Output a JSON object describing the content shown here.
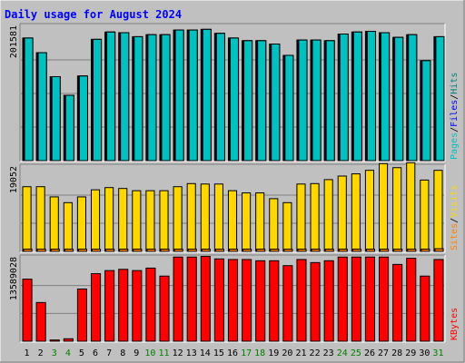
{
  "title": "Daily usage for August 2024",
  "colors": {
    "background": "#c0c0c0",
    "title": "#0000ff",
    "hits": "#008080",
    "files": "#0000ff",
    "pages": "#00c0c0",
    "visits": "#ffd700",
    "sites": "#ff8000",
    "kbytes": "#ff0000",
    "weekend_day_label": "#008000",
    "weekday_day_label": "#000000"
  },
  "chart_data": [
    {
      "type": "bar",
      "panel": "top",
      "ytick_label": "201581",
      "ylim": [
        0,
        201581
      ],
      "legend": [
        {
          "name": "Hits",
          "color": "#008080"
        },
        {
          "name": "/",
          "color": "#000000"
        },
        {
          "name": "Files",
          "color": "#0000ff"
        },
        {
          "name": "/",
          "color": "#000000"
        },
        {
          "name": "Pages",
          "color": "#00c0c0"
        }
      ],
      "categories": [
        "1",
        "2",
        "3",
        "4",
        "5",
        "6",
        "7",
        "8",
        "9",
        "10",
        "11",
        "12",
        "13",
        "14",
        "15",
        "16",
        "17",
        "18",
        "19",
        "20",
        "21",
        "22",
        "23",
        "24",
        "25",
        "26",
        "27",
        "28",
        "29",
        "30",
        "31"
      ],
      "weekend_days": [
        "3",
        "4",
        "10",
        "11",
        "17",
        "18",
        "24",
        "25",
        "31"
      ],
      "series": [
        {
          "name": "Hits",
          "values": [
            184000,
            162000,
            126000,
            98000,
            127000,
            182000,
            193000,
            192000,
            186000,
            189000,
            189000,
            196000,
            196000,
            197000,
            191000,
            184000,
            180000,
            180000,
            175000,
            158000,
            181000,
            181000,
            180000,
            190000,
            193000,
            194000,
            192000,
            185000,
            189000,
            150000,
            186000
          ]
        },
        {
          "name": "Files",
          "values": [
            184000,
            162000,
            126000,
            98000,
            127000,
            182000,
            193000,
            192000,
            186000,
            189000,
            189000,
            196000,
            196000,
            197000,
            191000,
            184000,
            180000,
            180000,
            175000,
            158000,
            181000,
            181000,
            180000,
            190000,
            193000,
            194000,
            192000,
            185000,
            189000,
            150000,
            186000
          ]
        },
        {
          "name": "Pages",
          "values": [
            184000,
            162000,
            126000,
            98000,
            127000,
            182000,
            193000,
            192000,
            186000,
            189000,
            189000,
            196000,
            196000,
            197000,
            191000,
            184000,
            180000,
            180000,
            175000,
            158000,
            181000,
            181000,
            180000,
            190000,
            193000,
            194000,
            192000,
            185000,
            189000,
            150000,
            186000
          ]
        }
      ]
    },
    {
      "type": "bar",
      "panel": "middle",
      "ytick_label": "19052",
      "ylim": [
        0,
        19052
      ],
      "legend": [
        {
          "name": "Visits",
          "color": "#ffd700"
        },
        {
          "name": "/",
          "color": "#000000"
        },
        {
          "name": "Sites",
          "color": "#ff8000"
        }
      ],
      "categories": [
        "1",
        "2",
        "3",
        "4",
        "5",
        "6",
        "7",
        "8",
        "9",
        "10",
        "11",
        "12",
        "13",
        "14",
        "15",
        "16",
        "17",
        "18",
        "19",
        "20",
        "21",
        "22",
        "23",
        "24",
        "25",
        "26",
        "27",
        "28",
        "29",
        "30",
        "31"
      ],
      "series": [
        {
          "name": "Visits",
          "values": [
            14600,
            14600,
            12300,
            11000,
            12300,
            13900,
            14400,
            14200,
            13700,
            13700,
            13700,
            14600,
            15300,
            15200,
            15200,
            13700,
            13200,
            13200,
            11900,
            11000,
            15200,
            15300,
            16200,
            17000,
            17500,
            18300,
            19800,
            18900,
            20000,
            16100,
            18300
          ]
        },
        {
          "name": "Sites",
          "values": [
            500,
            500,
            500,
            500,
            500,
            500,
            500,
            500,
            500,
            500,
            500,
            500,
            500,
            500,
            500,
            500,
            500,
            500,
            500,
            500,
            500,
            500,
            500,
            500,
            500,
            500,
            500,
            500,
            500,
            500,
            600
          ]
        }
      ]
    },
    {
      "type": "bar",
      "panel": "bottom",
      "ytick_label": "13589028",
      "ylim": [
        0,
        13589028
      ],
      "legend": [
        {
          "name": "KBytes",
          "color": "#ff0000"
        }
      ],
      "categories": [
        "1",
        "2",
        "3",
        "4",
        "5",
        "6",
        "7",
        "8",
        "9",
        "10",
        "11",
        "12",
        "13",
        "14",
        "15",
        "16",
        "17",
        "18",
        "19",
        "20",
        "21",
        "22",
        "23",
        "24",
        "25",
        "26",
        "27",
        "28",
        "29",
        "30",
        "31"
      ],
      "series": [
        {
          "name": "KBytes",
          "values": [
            10100000,
            6300000,
            200000,
            400000,
            8500000,
            11000000,
            11500000,
            11700000,
            11500000,
            11900000,
            10600000,
            13700000,
            13700000,
            13800000,
            13400000,
            13300000,
            13300000,
            13100000,
            13100000,
            12300000,
            13300000,
            12800000,
            13100000,
            13700000,
            13700000,
            13700000,
            13700000,
            12500000,
            13500000,
            10600000,
            13300000
          ]
        }
      ]
    }
  ]
}
